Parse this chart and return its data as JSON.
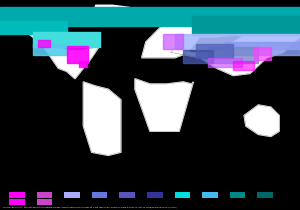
{
  "background_color": "#000000",
  "land_color": "#ffffff",
  "border_color": "#888888",
  "border_linewidth": 0.3,
  "figsize": [
    3.0,
    2.1
  ],
  "dpi": 100,
  "map_extent": [
    -180,
    180,
    -90,
    90
  ],
  "climate_zones": [
    {
      "lon_min": -180,
      "lon_max": 180,
      "lat_min": 65,
      "lat_max": 83,
      "color": "#00aaaa",
      "alpha": 1.0,
      "zorder": 4
    },
    {
      "lon_min": -180,
      "lon_max": -100,
      "lat_min": 58,
      "lat_max": 70,
      "color": "#00bbbb",
      "alpha": 1.0,
      "zorder": 4
    },
    {
      "lon_min": 50,
      "lon_max": 180,
      "lat_min": 57,
      "lat_max": 75,
      "color": "#009999",
      "alpha": 1.0,
      "zorder": 4
    },
    {
      "lon_min": -140,
      "lon_max": -60,
      "lat_min": 45,
      "lat_max": 60,
      "color": "#44dddd",
      "alpha": 1.0,
      "zorder": 5
    },
    {
      "lon_min": -140,
      "lon_max": -100,
      "lat_min": 38,
      "lat_max": 48,
      "color": "#55ccee",
      "alpha": 0.9,
      "zorder": 5
    },
    {
      "lon_min": 30,
      "lon_max": 180,
      "lat_min": 43,
      "lat_max": 58,
      "color": "#aabbff",
      "alpha": 0.9,
      "zorder": 5
    },
    {
      "lon_min": 90,
      "lon_max": 180,
      "lat_min": 38,
      "lat_max": 50,
      "color": "#8899ee",
      "alpha": 0.85,
      "zorder": 5
    },
    {
      "lon_min": 70,
      "lon_max": 130,
      "lat_min": 30,
      "lat_max": 45,
      "color": "#7788cc",
      "alpha": 0.8,
      "zorder": 5
    },
    {
      "lon_min": 55,
      "lon_max": 100,
      "lat_min": 35,
      "lat_max": 48,
      "color": "#5566bb",
      "alpha": 0.8,
      "zorder": 5
    },
    {
      "lon_min": 40,
      "lon_max": 75,
      "lat_min": 30,
      "lat_max": 42,
      "color": "#4455aa",
      "alpha": 0.8,
      "zorder": 5
    },
    {
      "lon_min": -100,
      "lon_max": -75,
      "lat_min": 30,
      "lat_max": 46,
      "color": "#ff00ff",
      "alpha": 0.9,
      "zorder": 6
    },
    {
      "lon_min": -85,
      "lon_max": -75,
      "lat_min": 26,
      "lat_max": 32,
      "color": "#ff00ff",
      "alpha": 0.9,
      "zorder": 6
    },
    {
      "lon_min": -135,
      "lon_max": -120,
      "lat_min": 45,
      "lat_max": 52,
      "color": "#ff00ff",
      "alpha": 0.8,
      "zorder": 6
    },
    {
      "lon_min": 15,
      "lon_max": 40,
      "lat_min": 43,
      "lat_max": 58,
      "color": "#cc55ff",
      "alpha": 0.7,
      "zorder": 5
    },
    {
      "lon_min": 70,
      "lon_max": 110,
      "lat_min": 26,
      "lat_max": 35,
      "color": "#cc55ff",
      "alpha": 0.65,
      "zorder": 5
    },
    {
      "lon_min": 100,
      "lon_max": 125,
      "lat_min": 23,
      "lat_max": 32,
      "color": "#ff00ff",
      "alpha": 0.6,
      "zorder": 5
    },
    {
      "lon_min": 125,
      "lon_max": 145,
      "lat_min": 33,
      "lat_max": 45,
      "color": "#ff44ff",
      "alpha": 0.7,
      "zorder": 6
    }
  ],
  "legend_colors": [
    [
      "#ff00ff",
      "#ff00ff"
    ],
    [
      "#cc44cc",
      "#cc44cc"
    ],
    [
      "#aaaaff",
      null
    ],
    [
      "#6677dd",
      null
    ],
    [
      "#5555bb",
      null
    ],
    [
      "#333399",
      null
    ],
    [
      "#00dddd",
      null
    ],
    [
      "#44bbee",
      null
    ],
    [
      "#008888",
      null
    ],
    [
      "#006666",
      null
    ]
  ],
  "source_text": "Source: Beck et al.; Present and future Köppen-Geiger climate classification maps at 1-km resolution, Scientific Data 5:180214, doi:10.1038/sdata.2018.214 (2018)"
}
